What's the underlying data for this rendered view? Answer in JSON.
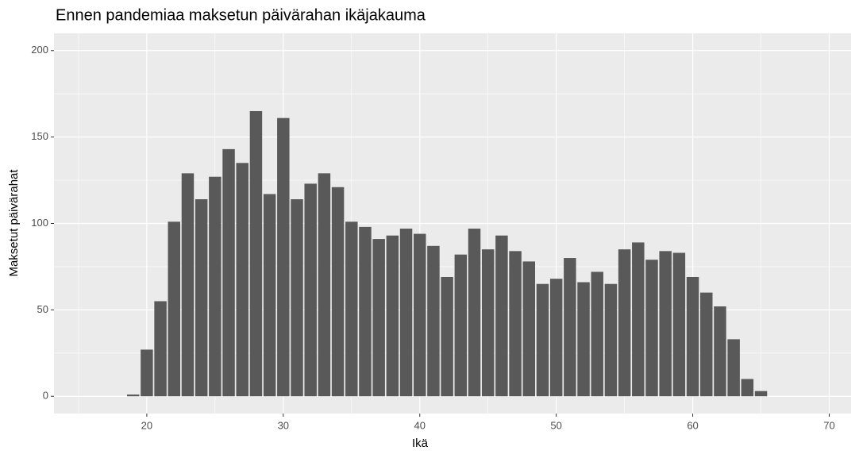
{
  "chart_data": {
    "type": "bar",
    "title": "Ennen pandemiaa maksetun päivärahan ikäjakauma",
    "xlabel": "Ikä",
    "ylabel": "Maksetut päivärahat",
    "x": [
      19,
      20,
      21,
      22,
      23,
      24,
      25,
      26,
      27,
      28,
      29,
      30,
      31,
      32,
      33,
      34,
      35,
      36,
      37,
      38,
      39,
      40,
      41,
      42,
      43,
      44,
      45,
      46,
      47,
      48,
      49,
      50,
      51,
      52,
      53,
      54,
      55,
      56,
      57,
      58,
      59,
      60,
      61,
      62,
      63,
      64,
      65
    ],
    "values": [
      1,
      27,
      55,
      101,
      129,
      114,
      127,
      143,
      135,
      165,
      117,
      161,
      114,
      123,
      129,
      121,
      101,
      98,
      91,
      93,
      97,
      94,
      87,
      69,
      82,
      97,
      85,
      93,
      84,
      78,
      65,
      68,
      80,
      66,
      72,
      65,
      85,
      89,
      79,
      84,
      83,
      69,
      60,
      52,
      33,
      10,
      3
    ],
    "color": "#595959",
    "xlim": [
      13.2,
      71.6
    ],
    "xticks": [
      20,
      30,
      40,
      50,
      60,
      70
    ],
    "ylim": [
      -10,
      210
    ],
    "yticks": [
      0,
      50,
      100,
      150,
      200
    ],
    "grid": true
  }
}
